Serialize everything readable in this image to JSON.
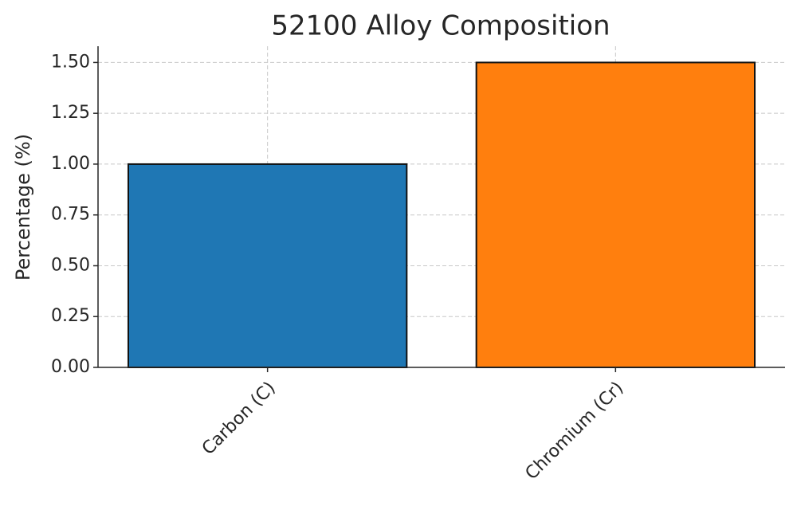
{
  "chart_data": {
    "type": "bar",
    "title": "52100 Alloy Composition",
    "y_label": "Percentage (%)",
    "categories": [
      "Carbon (C)",
      "Chromium (Cr)"
    ],
    "values": [
      1.0,
      1.5
    ],
    "colors": [
      "#1f77b4",
      "#ff7f0e"
    ],
    "ylim": [
      0,
      1.58
    ],
    "yticks": [
      {
        "value": 0,
        "label": "0.00"
      },
      {
        "value": 0.25,
        "label": "0.25"
      },
      {
        "value": 0.5,
        "label": "0.50"
      },
      {
        "value": 0.75,
        "label": "0.75"
      },
      {
        "value": 1.0,
        "label": "1.00"
      },
      {
        "value": 1.25,
        "label": "1.25"
      },
      {
        "value": 1.5,
        "label": "1.50"
      }
    ],
    "grid": true
  }
}
